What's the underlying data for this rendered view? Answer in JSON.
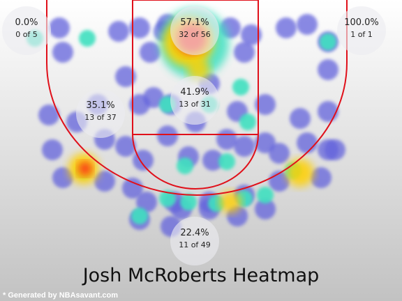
{
  "chart_data": {
    "type": "heatmap",
    "title": "Josh McRoberts Heatmap",
    "credit": "* Generated by NBAsavant.com",
    "zones": [
      {
        "name": "left-corner-three",
        "pct": "0.0%",
        "count": "0 of 5",
        "made": 0,
        "attempts": 5
      },
      {
        "name": "restricted-area",
        "pct": "57.1%",
        "count": "32 of 56",
        "made": 32,
        "attempts": 56
      },
      {
        "name": "right-corner-three",
        "pct": "100.0%",
        "count": "1 of 1",
        "made": 1,
        "attempts": 1
      },
      {
        "name": "paint-non-ra",
        "pct": "41.9%",
        "count": "13 of 31",
        "made": 13,
        "attempts": 31
      },
      {
        "name": "mid-range",
        "pct": "35.1%",
        "count": "13 of 37",
        "made": 13,
        "attempts": 37
      },
      {
        "name": "above-break-three",
        "pct": "22.4%",
        "count": "11 of 49",
        "made": 11,
        "attempts": 49
      }
    ],
    "colors": {
      "background_top": "#ffffff",
      "background_bottom": "#c2c2c2",
      "court_lines": "#e0101a",
      "cold": "#6464dc",
      "cool": "#40e0c0",
      "warm": "#ffd000",
      "hot": "#ff2a1a"
    }
  }
}
